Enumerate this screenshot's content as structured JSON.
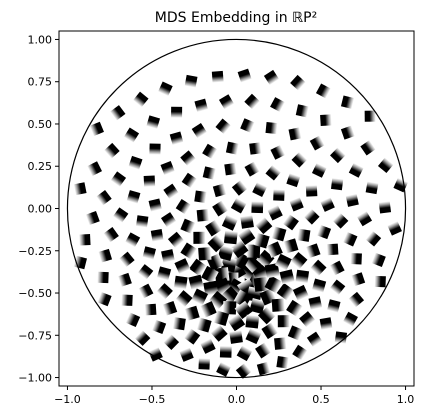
{
  "chart_data": {
    "type": "scatter",
    "title": "MDS Embedding in ℝP²",
    "xlabel": "",
    "ylabel": "",
    "xlim": [
      -1.05,
      1.05
    ],
    "ylim": [
      -1.05,
      1.05
    ],
    "x_ticks": [
      -1.0,
      -0.5,
      0.0,
      0.5,
      1.0
    ],
    "x_tick_labels": [
      "−1.0",
      "−0.5",
      "0.0",
      "0.5",
      "1.0"
    ],
    "y_ticks": [
      1.0,
      0.75,
      0.5,
      0.25,
      0.0,
      -0.25,
      -0.5,
      -0.75,
      -1.0
    ],
    "y_tick_labels": [
      "1.00",
      "0.75",
      "0.50",
      "0.25",
      "0.00",
      "−0.25",
      "−0.50",
      "−0.75",
      "−1.00"
    ],
    "grid": false,
    "boundary_circle": {
      "center": [
        0,
        0
      ],
      "radius": 1.0
    },
    "concentric_center": [
      0.03,
      -0.42
    ],
    "rings": [
      {
        "radius": 0.06,
        "count": 6
      },
      {
        "radius": 0.12,
        "count": 10
      },
      {
        "radius": 0.19,
        "count": 14
      },
      {
        "radius": 0.27,
        "count": 18
      },
      {
        "radius": 0.36,
        "count": 22
      },
      {
        "radius": 0.46,
        "count": 26
      },
      {
        "radius": 0.57,
        "count": 30
      },
      {
        "radius": 0.69,
        "count": 34
      },
      {
        "radius": 0.82,
        "count": 38
      },
      {
        "radius": 0.96,
        "count": 42
      },
      {
        "radius": 1.11,
        "count": 46
      },
      {
        "radius": 1.27,
        "count": 50
      }
    ],
    "marker": "image-patch",
    "colors": {
      "ink": "#000000",
      "background": "#ffffff"
    }
  }
}
